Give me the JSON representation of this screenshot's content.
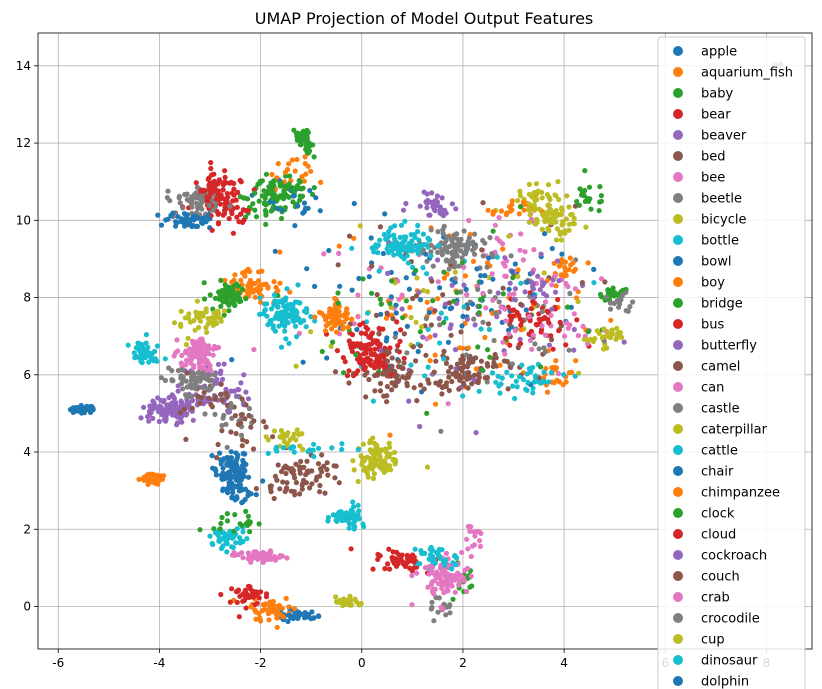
{
  "chart_data": {
    "type": "scatter",
    "title": "UMAP Projection of Model Output Features",
    "xlabel": "",
    "ylabel": "",
    "xlim": [
      -6.4,
      8.9
    ],
    "ylim": [
      -1.1,
      14.85
    ],
    "xticks": [
      -6,
      -4,
      -2,
      0,
      2,
      4,
      6,
      8
    ],
    "yticks": [
      0,
      2,
      4,
      6,
      8,
      10,
      12,
      14
    ],
    "grid": true,
    "legend_position": "top-right",
    "series": [
      {
        "name": "apple",
        "color": "#1f77b4",
        "clusters": [
          [
            -5.5,
            5.12,
            0.18,
            0.06,
            30
          ],
          [
            -2.6,
            3.6,
            0.25,
            0.35,
            40
          ],
          [
            -1.3,
            -0.2,
            0.3,
            0.1,
            20
          ],
          [
            1.5,
            8.0,
            2.0,
            1.6,
            40
          ]
        ]
      },
      {
        "name": "aquarium_fish",
        "color": "#ff7f0e",
        "clusters": [
          [
            -4.1,
            3.35,
            0.2,
            0.1,
            30
          ],
          [
            -1.8,
            0.0,
            0.3,
            0.2,
            30
          ],
          [
            -2.2,
            8.2,
            0.4,
            0.3,
            35
          ],
          [
            3.8,
            6.0,
            0.3,
            0.3,
            25
          ],
          [
            2.0,
            8.0,
            2.0,
            1.5,
            40
          ]
        ]
      },
      {
        "name": "baby",
        "color": "#2ca02c",
        "clusters": [
          [
            -1.1,
            12.0,
            0.1,
            0.2,
            25
          ],
          [
            -1.6,
            10.6,
            0.5,
            0.4,
            45
          ],
          [
            4.5,
            10.6,
            0.3,
            0.3,
            20
          ],
          [
            5.0,
            8.1,
            0.2,
            0.1,
            15
          ],
          [
            2.0,
            0.6,
            0.3,
            0.4,
            15
          ]
        ]
      },
      {
        "name": "bear",
        "color": "#d62728",
        "clusters": [
          [
            -2.8,
            10.6,
            0.4,
            0.4,
            50
          ],
          [
            0.3,
            6.7,
            0.5,
            0.5,
            45
          ],
          [
            -2.3,
            0.3,
            0.3,
            0.2,
            25
          ],
          [
            0.8,
            1.1,
            0.3,
            0.2,
            15
          ]
        ]
      },
      {
        "name": "beaver",
        "color": "#9467bd",
        "clusters": [
          [
            -3.7,
            5.2,
            0.3,
            0.2,
            35
          ],
          [
            -2.9,
            5.7,
            0.5,
            0.5,
            35
          ],
          [
            1.5,
            10.3,
            0.3,
            0.3,
            20
          ],
          [
            2.5,
            7.5,
            1.8,
            1.5,
            30
          ]
        ]
      },
      {
        "name": "bed",
        "color": "#8c564b",
        "clusters": [
          [
            0.5,
            6.0,
            0.5,
            0.5,
            35
          ],
          [
            2.0,
            6.2,
            0.4,
            0.4,
            25
          ],
          [
            -1.5,
            3.3,
            0.4,
            0.4,
            25
          ],
          [
            1.5,
            8.0,
            2.0,
            1.5,
            30
          ]
        ]
      },
      {
        "name": "bee",
        "color": "#e377c2",
        "clusters": [
          [
            -3.3,
            6.5,
            0.3,
            0.3,
            35
          ],
          [
            -2.1,
            1.3,
            0.3,
            0.1,
            30
          ],
          [
            1.8,
            0.8,
            0.3,
            0.4,
            30
          ],
          [
            3.0,
            9.0,
            0.6,
            0.8,
            25
          ],
          [
            1.0,
            8.0,
            2.0,
            1.5,
            30
          ]
        ]
      },
      {
        "name": "beetle",
        "color": "#7f7f7f",
        "clusters": [
          [
            -3.3,
            10.5,
            0.4,
            0.3,
            35
          ],
          [
            1.8,
            9.3,
            0.4,
            0.3,
            25
          ],
          [
            -2.5,
            5.0,
            0.5,
            0.4,
            25
          ],
          [
            1.5,
            0.0,
            0.2,
            0.2,
            15
          ],
          [
            3.0,
            7.5,
            1.5,
            1.5,
            25
          ]
        ]
      },
      {
        "name": "bicycle",
        "color": "#bcbd22",
        "clusters": [
          [
            3.7,
            10.2,
            0.4,
            0.5,
            40
          ],
          [
            0.3,
            3.9,
            0.3,
            0.3,
            30
          ],
          [
            -3.2,
            7.4,
            0.3,
            0.3,
            25
          ],
          [
            -0.3,
            0.1,
            0.15,
            0.1,
            15
          ],
          [
            4.8,
            7.0,
            0.3,
            0.2,
            15
          ],
          [
            1.5,
            7.5,
            2.0,
            1.5,
            25
          ]
        ]
      },
      {
        "name": "bottle",
        "color": "#17becf",
        "clusters": [
          [
            -1.5,
            7.6,
            0.3,
            0.4,
            35
          ],
          [
            0.9,
            9.3,
            0.4,
            0.3,
            35
          ],
          [
            -0.3,
            2.3,
            0.2,
            0.2,
            20
          ],
          [
            -2.7,
            1.8,
            0.3,
            0.2,
            25
          ],
          [
            -4.3,
            6.5,
            0.2,
            0.3,
            25
          ],
          [
            1.4,
            1.3,
            0.3,
            0.3,
            20
          ],
          [
            3.0,
            5.7,
            0.4,
            0.2,
            20
          ],
          [
            1.5,
            7.5,
            2.0,
            1.5,
            30
          ]
        ]
      },
      {
        "name": "bowl",
        "color": "#1f77b4",
        "clusters": [
          [
            -3.4,
            10.0,
            0.3,
            0.15,
            25
          ],
          [
            -2.4,
            3.0,
            0.3,
            0.3,
            25
          ],
          [
            1.0,
            8.0,
            2.0,
            1.5,
            30
          ]
        ]
      },
      {
        "name": "boy",
        "color": "#ff7f0e",
        "clusters": [
          [
            -0.6,
            7.5,
            0.2,
            0.3,
            25
          ],
          [
            -1.4,
            11.2,
            0.3,
            0.3,
            20
          ],
          [
            3.0,
            10.3,
            0.3,
            0.2,
            20
          ],
          [
            2.0,
            7.5,
            2.0,
            1.5,
            30
          ]
        ]
      },
      {
        "name": "bridge",
        "color": "#2ca02c",
        "clusters": [
          [
            -2.6,
            8.0,
            0.3,
            0.3,
            35
          ],
          [
            -2.5,
            2.2,
            0.3,
            0.2,
            20
          ],
          [
            -1.8,
            10.4,
            0.4,
            0.3,
            25
          ],
          [
            2.0,
            7.5,
            2.0,
            1.5,
            25
          ]
        ]
      },
      {
        "name": "bus",
        "color": "#d62728",
        "clusters": [
          [
            0.2,
            6.5,
            0.4,
            0.4,
            40
          ],
          [
            -2.6,
            10.2,
            0.3,
            0.3,
            35
          ],
          [
            3.5,
            7.5,
            0.5,
            0.5,
            30
          ],
          [
            0.5,
            1.2,
            0.3,
            0.2,
            15
          ]
        ]
      },
      {
        "name": "butterfly",
        "color": "#9467bd",
        "clusters": [
          [
            -4.0,
            5.1,
            0.3,
            0.2,
            35
          ],
          [
            -3.1,
            5.4,
            0.4,
            0.3,
            30
          ],
          [
            2.0,
            7.5,
            2.0,
            1.5,
            25
          ]
        ]
      },
      {
        "name": "camel",
        "color": "#8c564b",
        "clusters": [
          [
            -1.0,
            3.5,
            0.5,
            0.4,
            30
          ],
          [
            2.2,
            6.2,
            0.5,
            0.3,
            30
          ],
          [
            -2.5,
            4.7,
            0.5,
            0.4,
            25
          ],
          [
            2.0,
            7.5,
            2.0,
            1.5,
            25
          ]
        ]
      },
      {
        "name": "can",
        "color": "#e377c2",
        "clusters": [
          [
            -3.2,
            6.6,
            0.2,
            0.3,
            30
          ],
          [
            1.6,
            0.8,
            0.3,
            0.3,
            30
          ],
          [
            -2.0,
            1.3,
            0.3,
            0.1,
            25
          ],
          [
            3.5,
            7.5,
            1.0,
            1.0,
            20
          ]
        ]
      },
      {
        "name": "castle",
        "color": "#7f7f7f",
        "clusters": [
          [
            1.8,
            9.2,
            0.4,
            0.4,
            35
          ],
          [
            -3.4,
            5.9,
            0.4,
            0.3,
            30
          ],
          [
            -3.3,
            10.5,
            0.3,
            0.2,
            25
          ],
          [
            3.0,
            7.5,
            1.5,
            1.5,
            20
          ]
        ]
      },
      {
        "name": "caterpillar",
        "color": "#bcbd22",
        "clusters": [
          [
            0.3,
            3.8,
            0.3,
            0.3,
            35
          ],
          [
            3.8,
            10.0,
            0.3,
            0.4,
            30
          ],
          [
            -1.5,
            4.3,
            0.3,
            0.2,
            25
          ],
          [
            -0.3,
            0.1,
            0.15,
            0.1,
            15
          ]
        ]
      },
      {
        "name": "cattle",
        "color": "#17becf",
        "clusters": [
          [
            -1.6,
            7.6,
            0.3,
            0.3,
            35
          ],
          [
            0.7,
            9.4,
            0.4,
            0.3,
            30
          ],
          [
            -0.2,
            2.3,
            0.2,
            0.2,
            20
          ],
          [
            -2.6,
            1.7,
            0.3,
            0.2,
            20
          ],
          [
            -1.0,
            4.1,
            0.8,
            0.1,
            20
          ],
          [
            3.5,
            6.0,
            0.4,
            0.2,
            20
          ]
        ]
      },
      {
        "name": "chair",
        "color": "#1f77b4",
        "clusters": [
          [
            -2.5,
            3.4,
            0.2,
            0.3,
            40
          ],
          [
            -1.3,
            -0.25,
            0.3,
            0.1,
            20
          ],
          [
            -1.5,
            10.5,
            0.4,
            0.3,
            20
          ],
          [
            2.0,
            8.0,
            1.5,
            1.2,
            20
          ]
        ]
      },
      {
        "name": "chimpanzee",
        "color": "#ff7f0e",
        "clusters": [
          [
            -4.2,
            3.3,
            0.15,
            0.1,
            20
          ],
          [
            -0.5,
            7.5,
            0.2,
            0.3,
            30
          ],
          [
            -2.2,
            8.3,
            0.3,
            0.3,
            30
          ],
          [
            4.0,
            8.8,
            0.2,
            0.3,
            20
          ],
          [
            -1.8,
            -0.1,
            0.3,
            0.2,
            20
          ]
        ]
      },
      {
        "name": "clock",
        "color": "#2ca02c",
        "clusters": [
          [
            -1.2,
            12.1,
            0.1,
            0.15,
            20
          ],
          [
            -1.6,
            10.8,
            0.4,
            0.3,
            35
          ],
          [
            -2.6,
            8.1,
            0.2,
            0.2,
            25
          ],
          [
            5.0,
            8.1,
            0.2,
            0.1,
            15
          ],
          [
            2.0,
            7.5,
            2.0,
            1.5,
            20
          ]
        ]
      },
      {
        "name": "cloud",
        "color": "#d62728",
        "clusters": [
          [
            0.1,
            6.6,
            0.3,
            0.4,
            35
          ],
          [
            -2.9,
            10.8,
            0.3,
            0.3,
            35
          ],
          [
            0.8,
            1.2,
            0.3,
            0.2,
            20
          ],
          [
            -2.2,
            0.3,
            0.2,
            0.1,
            20
          ],
          [
            3.5,
            7.3,
            0.5,
            0.5,
            20
          ]
        ]
      },
      {
        "name": "cockroach",
        "color": "#9467bd",
        "clusters": [
          [
            -3.7,
            5.0,
            0.3,
            0.2,
            30
          ],
          [
            1.4,
            10.5,
            0.3,
            0.3,
            20
          ],
          [
            3.5,
            8.5,
            0.5,
            0.5,
            20
          ]
        ]
      },
      {
        "name": "couch",
        "color": "#8c564b",
        "clusters": [
          [
            0.6,
            5.9,
            0.4,
            0.4,
            30
          ],
          [
            2.0,
            6.0,
            0.4,
            0.3,
            25
          ],
          [
            -1.3,
            3.1,
            0.4,
            0.4,
            20
          ],
          [
            -3.0,
            5.5,
            0.4,
            0.4,
            20
          ]
        ]
      },
      {
        "name": "crab",
        "color": "#e377c2",
        "clusters": [
          [
            -3.2,
            6.5,
            0.2,
            0.2,
            25
          ],
          [
            1.5,
            0.6,
            0.3,
            0.4,
            35
          ],
          [
            2.2,
            1.8,
            0.2,
            0.3,
            15
          ],
          [
            3.5,
            7.5,
            1.0,
            1.0,
            20
          ]
        ]
      },
      {
        "name": "crocodile",
        "color": "#7f7f7f",
        "clusters": [
          [
            1.8,
            9.3,
            0.4,
            0.3,
            30
          ],
          [
            -3.3,
            5.8,
            0.4,
            0.3,
            25
          ],
          [
            5.0,
            7.8,
            0.3,
            0.2,
            15
          ],
          [
            8.2,
            14.0,
            0.1,
            0.1,
            4
          ]
        ]
      },
      {
        "name": "cup",
        "color": "#bcbd22",
        "clusters": [
          [
            0.4,
            3.8,
            0.3,
            0.3,
            30
          ],
          [
            3.6,
            10.3,
            0.3,
            0.4,
            30
          ],
          [
            -3.0,
            7.5,
            0.3,
            0.3,
            20
          ],
          [
            4.8,
            7.0,
            0.3,
            0.2,
            15
          ]
        ]
      },
      {
        "name": "dinosaur",
        "color": "#17becf",
        "clusters": [
          [
            -1.5,
            7.5,
            0.3,
            0.4,
            30
          ],
          [
            0.8,
            9.4,
            0.4,
            0.3,
            30
          ],
          [
            -4.3,
            6.6,
            0.2,
            0.2,
            20
          ],
          [
            1.5,
            1.2,
            0.3,
            0.3,
            20
          ],
          [
            -0.3,
            2.3,
            0.2,
            0.2,
            15
          ]
        ]
      },
      {
        "name": "dolphin",
        "color": "#1f77b4",
        "clusters": [
          [
            -5.5,
            5.1,
            0.15,
            0.06,
            20
          ],
          [
            -2.5,
            3.5,
            0.2,
            0.3,
            25
          ],
          [
            -3.4,
            10.0,
            0.3,
            0.1,
            20
          ]
        ]
      }
    ]
  }
}
